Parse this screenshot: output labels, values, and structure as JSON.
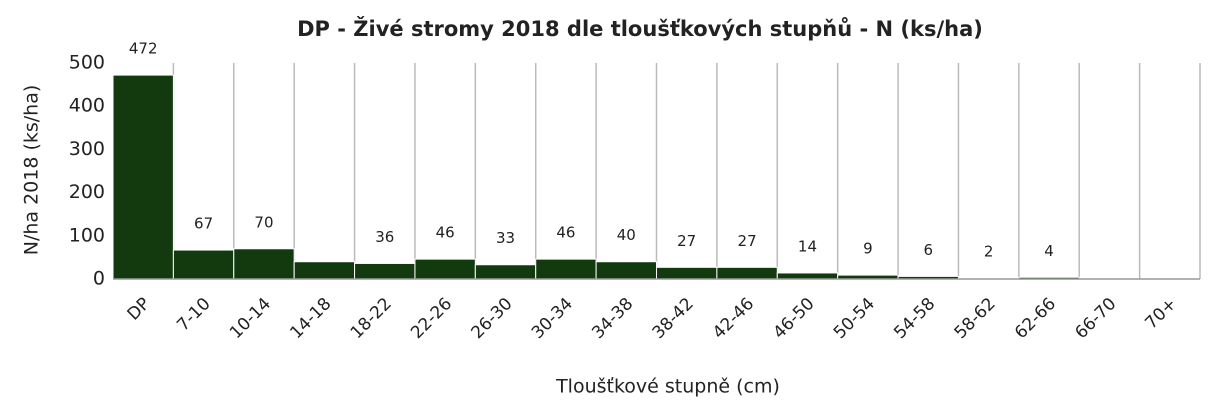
{
  "chart_data": {
    "type": "bar",
    "title": "DP - Živé stromy 2018 dle tloušťkových stupňů  - N (ks/ha)",
    "x_label": "Tloušťkové stupně (cm)",
    "y_label": "N/ha 2018 (ks/ha)",
    "categories": [
      "DP",
      "7-10",
      "10-14",
      "14-18",
      "18-22",
      "22-26",
      "26-30",
      "30-34",
      "34-38",
      "38-42",
      "42-46",
      "46-50",
      "50-54",
      "54-58",
      "58-62",
      "62-66",
      "66-70",
      "70+"
    ],
    "values": [
      472,
      67,
      70,
      40,
      36,
      46,
      33,
      46,
      40,
      27,
      27,
      14,
      9,
      6,
      2,
      4,
      0,
      0
    ],
    "value_labels": [
      "472",
      "67",
      "70",
      null,
      "36",
      "46",
      "33",
      "46",
      "40",
      "27",
      "27",
      "14",
      "9",
      "6",
      "2",
      "4",
      null,
      null
    ],
    "color": "#133a0f",
    "ylim": [
      0,
      500
    ],
    "yticks": [
      0,
      100,
      200,
      300,
      400,
      500
    ],
    "grid": false
  }
}
